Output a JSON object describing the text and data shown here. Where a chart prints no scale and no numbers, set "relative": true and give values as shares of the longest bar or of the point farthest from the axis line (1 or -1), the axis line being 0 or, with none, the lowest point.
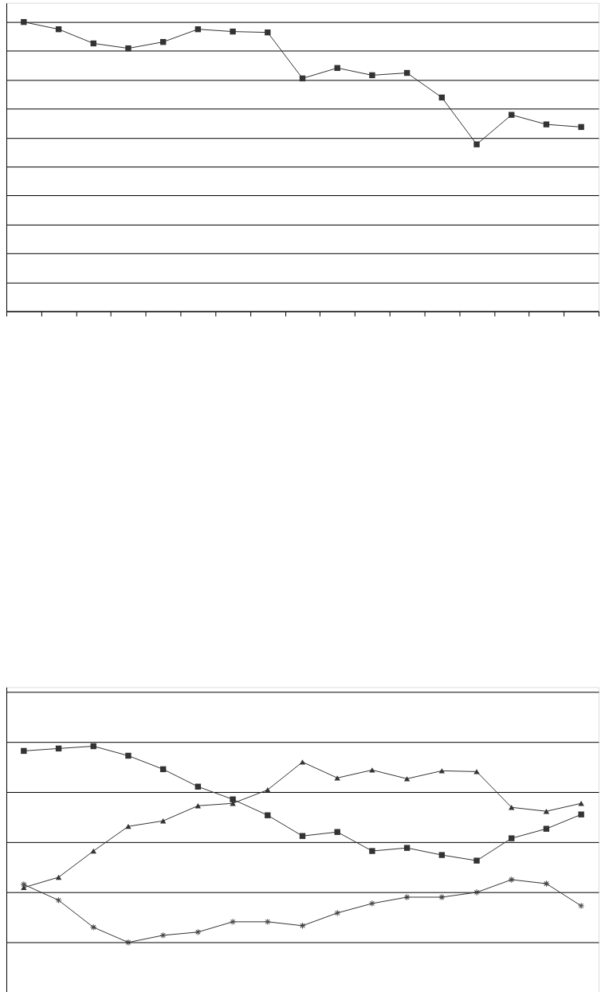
{
  "chart_data": [
    {
      "type": "line",
      "relative": true,
      "grid": "y",
      "categories": [
        null,
        null,
        null,
        null,
        null,
        null,
        null,
        null,
        null,
        null,
        null,
        null,
        null,
        null,
        null,
        null,
        null
      ],
      "series": [
        {
          "color": "#333333",
          "marker": "square",
          "values": [
            1.0,
            0.975,
            0.926,
            0.909,
            0.931,
            0.975,
            0.967,
            0.964,
            0.805,
            0.841,
            0.816,
            0.824,
            0.739,
            0.577,
            0.679,
            0.646,
            0.637
          ]
        }
      ]
    },
    {
      "type": "line",
      "relative": true,
      "grid": "y",
      "categories": [
        null,
        null,
        null,
        null,
        null,
        null,
        null,
        null,
        null,
        null,
        null,
        null,
        null,
        null,
        null,
        null,
        null
      ],
      "series": [
        {
          "color": "#333333",
          "marker": "cross",
          "values": [
            -0.421,
            -0.579,
            -0.849,
            -1.0,
            -0.929,
            -0.897,
            -0.794,
            -0.794,
            -0.833,
            -0.706,
            -0.611,
            -0.548,
            -0.548,
            -0.5,
            -0.373,
            -0.413,
            -0.635
          ]
        },
        {
          "color": "#333333",
          "marker": "square",
          "values": [
            0.913,
            0.937,
            0.96,
            0.865,
            0.73,
            0.556,
            0.429,
            0.27,
            0.063,
            0.103,
            -0.087,
            -0.056,
            -0.127,
            -0.183,
            0.04,
            0.135,
            0.278
          ]
        },
        {
          "color": "#333333",
          "marker": "triangle",
          "values": [
            -0.452,
            -0.349,
            -0.087,
            0.159,
            0.214,
            0.365,
            0.389,
            0.524,
            0.802,
            0.643,
            0.722,
            0.635,
            0.714,
            0.706,
            0.349,
            0.31,
            0.389
          ]
        }
      ]
    }
  ]
}
